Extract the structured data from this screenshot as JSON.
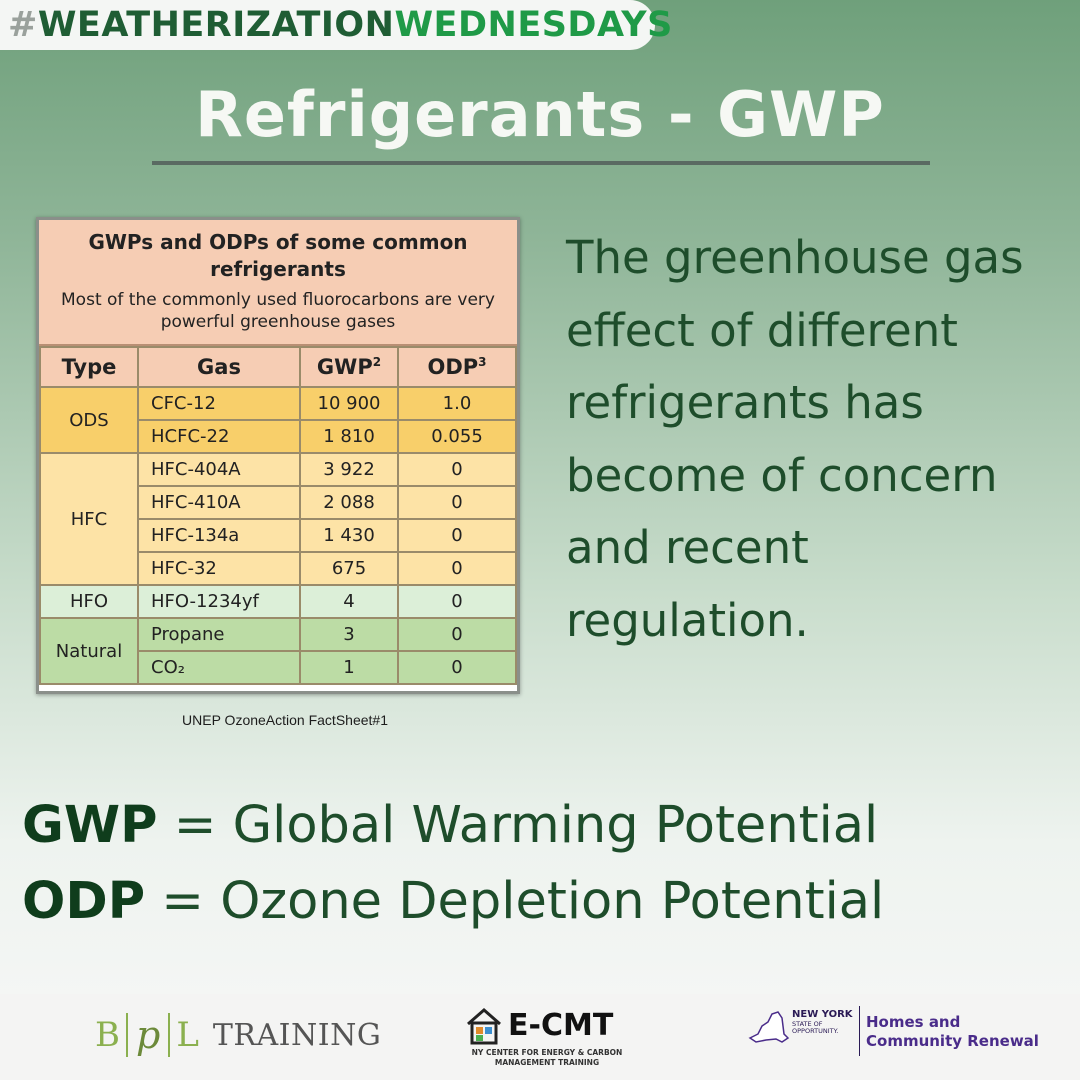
{
  "hashtag": {
    "hash": "#",
    "part1": "WEATHERIZATION",
    "part2": "WEDNESDAYS"
  },
  "title": "Refrigerants - GWP",
  "table": {
    "heading": "GWPs and ODPs of some common refrigerants",
    "subheading": "Most of the commonly used fluorocarbons are very powerful greenhouse gases",
    "columns": {
      "type": "Type",
      "gas": "Gas",
      "gwp": "GWP",
      "gwp_sup": "2",
      "odp": "ODP",
      "odp_sup": "3"
    },
    "groups": [
      {
        "type": "ODS",
        "rows": [
          {
            "gas": "CFC-12",
            "gwp": "10 900",
            "odp": "1.0"
          },
          {
            "gas": "HCFC-22",
            "gwp": "1 810",
            "odp": "0.055"
          }
        ]
      },
      {
        "type": "HFC",
        "rows": [
          {
            "gas": "HFC-404A",
            "gwp": "3 922",
            "odp": "0"
          },
          {
            "gas": "HFC-410A",
            "gwp": "2 088",
            "odp": "0"
          },
          {
            "gas": "HFC-134a",
            "gwp": "1 430",
            "odp": "0"
          },
          {
            "gas": "HFC-32",
            "gwp": "675",
            "odp": "0"
          }
        ]
      },
      {
        "type": "HFO",
        "rows": [
          {
            "gas": "HFO-1234yf",
            "gwp": "4",
            "odp": "0"
          }
        ]
      },
      {
        "type": "Natural",
        "rows": [
          {
            "gas": "Propane",
            "gwp": "3",
            "odp": "0"
          },
          {
            "gas": "CO₂",
            "gwp": "1",
            "odp": "0"
          }
        ]
      }
    ],
    "caption": "UNEP OzoneAction FactSheet#1"
  },
  "side_text": "The greenhouse gas effect of different refrigerants has become of concern and recent regulation.",
  "definitions": [
    {
      "abbr": "GWP",
      "rest": " = Global Warming Potential"
    },
    {
      "abbr": "ODP",
      "rest": " = Ozone Depletion Potential"
    }
  ],
  "footer": {
    "bpl": {
      "b": "B",
      "p": "p",
      "l": "L",
      "training": "TRAINING"
    },
    "ecmt": {
      "name": "E-CMT",
      "sub1": "NY CENTER FOR ENERGY & CARBON",
      "sub2": "MANAGEMENT TRAINING"
    },
    "nys": {
      "line1": "NEW YORK",
      "line2": "STATE OF",
      "line3": "OPPORTUNITY.",
      "hcr1": "Homes and",
      "hcr2": "Community Renewal"
    }
  },
  "colors": {
    "dark_green": "#1e4d2b",
    "accent_green": "#1f9a47",
    "title_text": "#f6f8f4"
  }
}
